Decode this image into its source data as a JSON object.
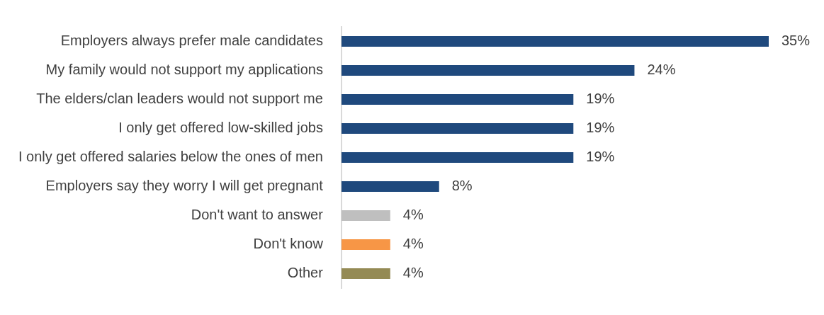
{
  "chart_data": {
    "type": "bar",
    "orientation": "horizontal",
    "categories": [
      "Employers always prefer male candidates",
      "My family would not support my applications",
      "The elders/clan leaders would not support me",
      "I only get offered low-skilled jobs",
      "I only get offered salaries below the ones of men",
      "Employers say they worry I will get pregnant",
      "Don't want to answer",
      "Don't know",
      "Other"
    ],
    "values": [
      35,
      24,
      19,
      19,
      19,
      8,
      4,
      4,
      4
    ],
    "colors": [
      "#1f497d",
      "#1f497d",
      "#1f497d",
      "#1f497d",
      "#1f497d",
      "#1f497d",
      "#bfbfbf",
      "#f79646",
      "#948a54"
    ],
    "value_labels": [
      "35%",
      "24%",
      "19%",
      "19%",
      "19%",
      "8%",
      "4%",
      "4%",
      "4%"
    ],
    "grid": false,
    "legend": false
  }
}
